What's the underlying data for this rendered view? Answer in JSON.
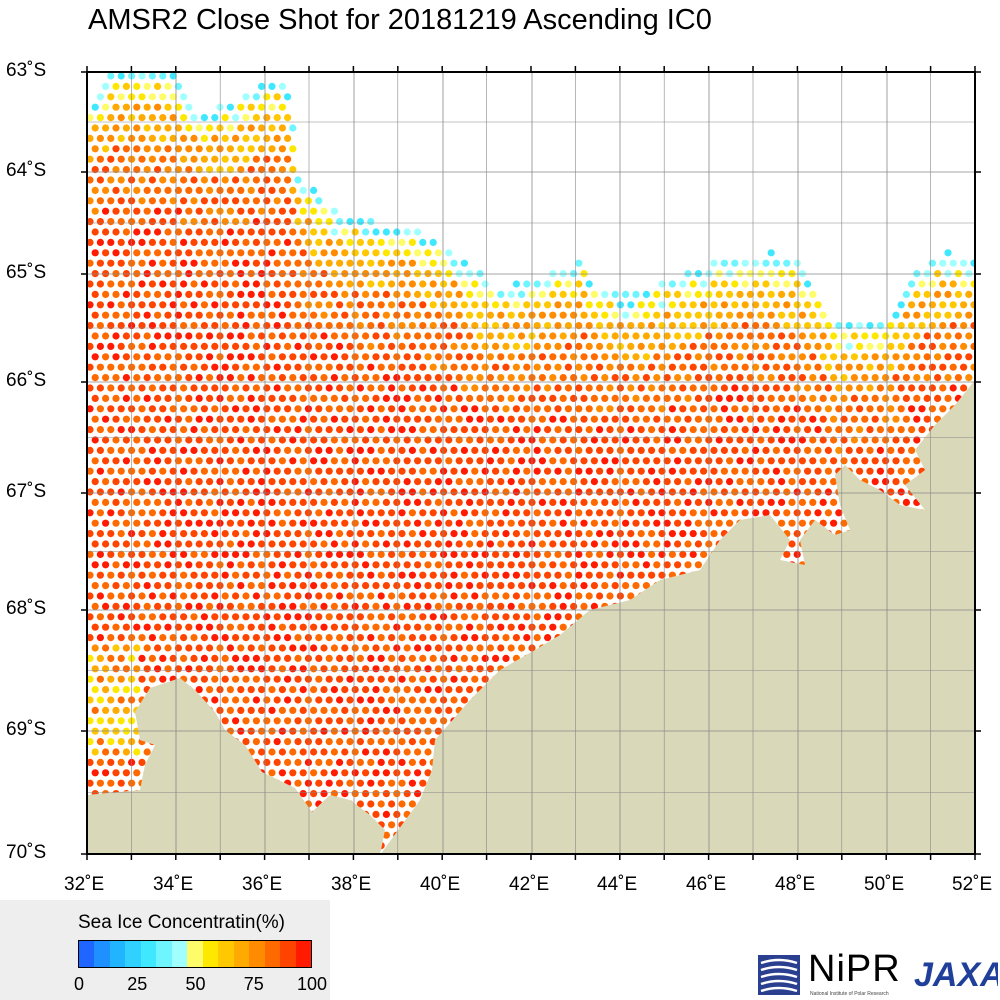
{
  "title": "AMSR2 Close Shot for 20181219 Ascending IC0",
  "map": {
    "lon_range": [
      32,
      52
    ],
    "lat_range": [
      -70,
      -63
    ],
    "lon_ticks": [
      "32˚E",
      "34˚E",
      "36˚E",
      "38˚E",
      "40˚E",
      "42˚E",
      "44˚E",
      "46˚E",
      "48˚E",
      "50˚E",
      "52˚E"
    ],
    "lat_ticks": [
      "63˚S",
      "64˚S",
      "65˚S",
      "66˚S",
      "67˚S",
      "68˚S",
      "69˚S",
      "70˚S"
    ],
    "land_color": "#d9d8b8",
    "grid_color": "#888888"
  },
  "legend": {
    "title": "Sea Ice Concentratin(%)",
    "ticks": [
      "0",
      "25",
      "50",
      "75",
      "100"
    ],
    "colors": [
      "#1e66ff",
      "#1e90ff",
      "#21b4ff",
      "#30d0ff",
      "#40e8ff",
      "#6ff5ff",
      "#a0ffff",
      "#fffc6a",
      "#ffe800",
      "#ffc800",
      "#ffaa00",
      "#ff8c00",
      "#ff6a00",
      "#ff4400",
      "#ff1a00"
    ]
  },
  "logos": {
    "nipr": "NiPR",
    "nipr_sub": "National Institute of Polar Research",
    "jaxa": "JAXA",
    "nipr_logo_icon": "nipr-emblem-icon",
    "jaxa_logo_icon": "jaxa-wordmark-icon"
  }
}
